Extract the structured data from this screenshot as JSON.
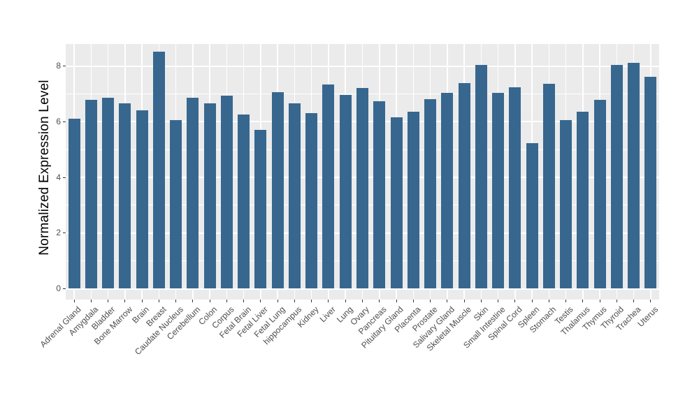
{
  "chart_data": {
    "type": "bar",
    "title": "",
    "xlabel": "",
    "ylabel": "Normalized Expression Level",
    "categories": [
      "Adrenal Gland",
      "Amygdala",
      "Bladder",
      "Bone Marrow",
      "Brain",
      "Breast",
      "Caudate Nucleus",
      "Cerebellum",
      "Colon",
      "Corpus",
      "Fetal Brain",
      "Fetal Liver",
      "Fetal Lung",
      "hippocampus",
      "Kidney",
      "Liver",
      "Lung",
      "Ovary",
      "Pancreas",
      "Pituitary Gland",
      "Placenta",
      "Prostate",
      "Salivary Gland",
      "Skeletal Muscle",
      "Skin",
      "Small Intestine",
      "Spinal Cord",
      "Spleen",
      "Stomach",
      "Testis",
      "Thalamus",
      "Thymus",
      "Thyroid",
      "Trachea",
      "Uterus"
    ],
    "values": [
      6.1,
      6.78,
      6.86,
      6.66,
      6.41,
      8.51,
      6.05,
      6.87,
      6.67,
      6.93,
      6.26,
      5.7,
      7.07,
      6.67,
      6.3,
      7.33,
      6.97,
      7.22,
      6.73,
      6.15,
      6.37,
      6.82,
      7.03,
      7.39,
      8.05,
      7.05,
      7.25,
      5.24,
      7.37,
      6.06,
      6.37,
      6.8,
      8.05,
      8.13,
      7.61
    ],
    "yticks": [
      0,
      2,
      4,
      6,
      8
    ],
    "yticks_minor": [
      1,
      3,
      5,
      7
    ],
    "ylim": [
      0,
      8.8
    ],
    "grid": true,
    "legend": false,
    "colors": {
      "bar": "#37678F",
      "panel_bg": "#EBEBEB",
      "grid": "#FFFFFF",
      "tick_mark": "#333333",
      "axis_text": "#4D4D4D",
      "axis_title": "#000000",
      "figure_bg": "#FFFFFF"
    }
  }
}
